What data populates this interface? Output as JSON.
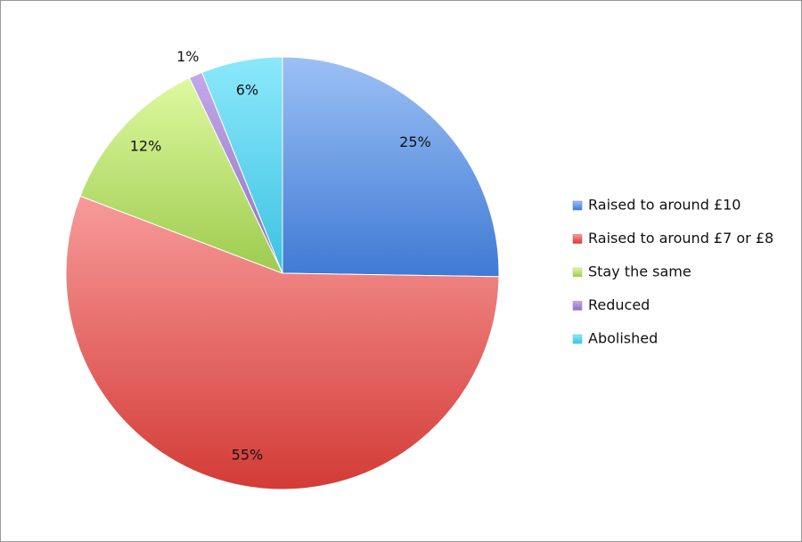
{
  "chart_data": {
    "type": "pie",
    "categories": [
      "Raised to around £10",
      "Raised to around £7 or £8",
      "Stay the same",
      "Reduced",
      "Abolished"
    ],
    "values": [
      25,
      55,
      12,
      1,
      6
    ],
    "value_labels": [
      "25%",
      "55%",
      "12%",
      "1%",
      "6%"
    ],
    "colors": [
      "#4a86d8",
      "#e0534f",
      "#a9d45a",
      "#9d80cc",
      "#44c8e6"
    ],
    "legend": "right"
  }
}
